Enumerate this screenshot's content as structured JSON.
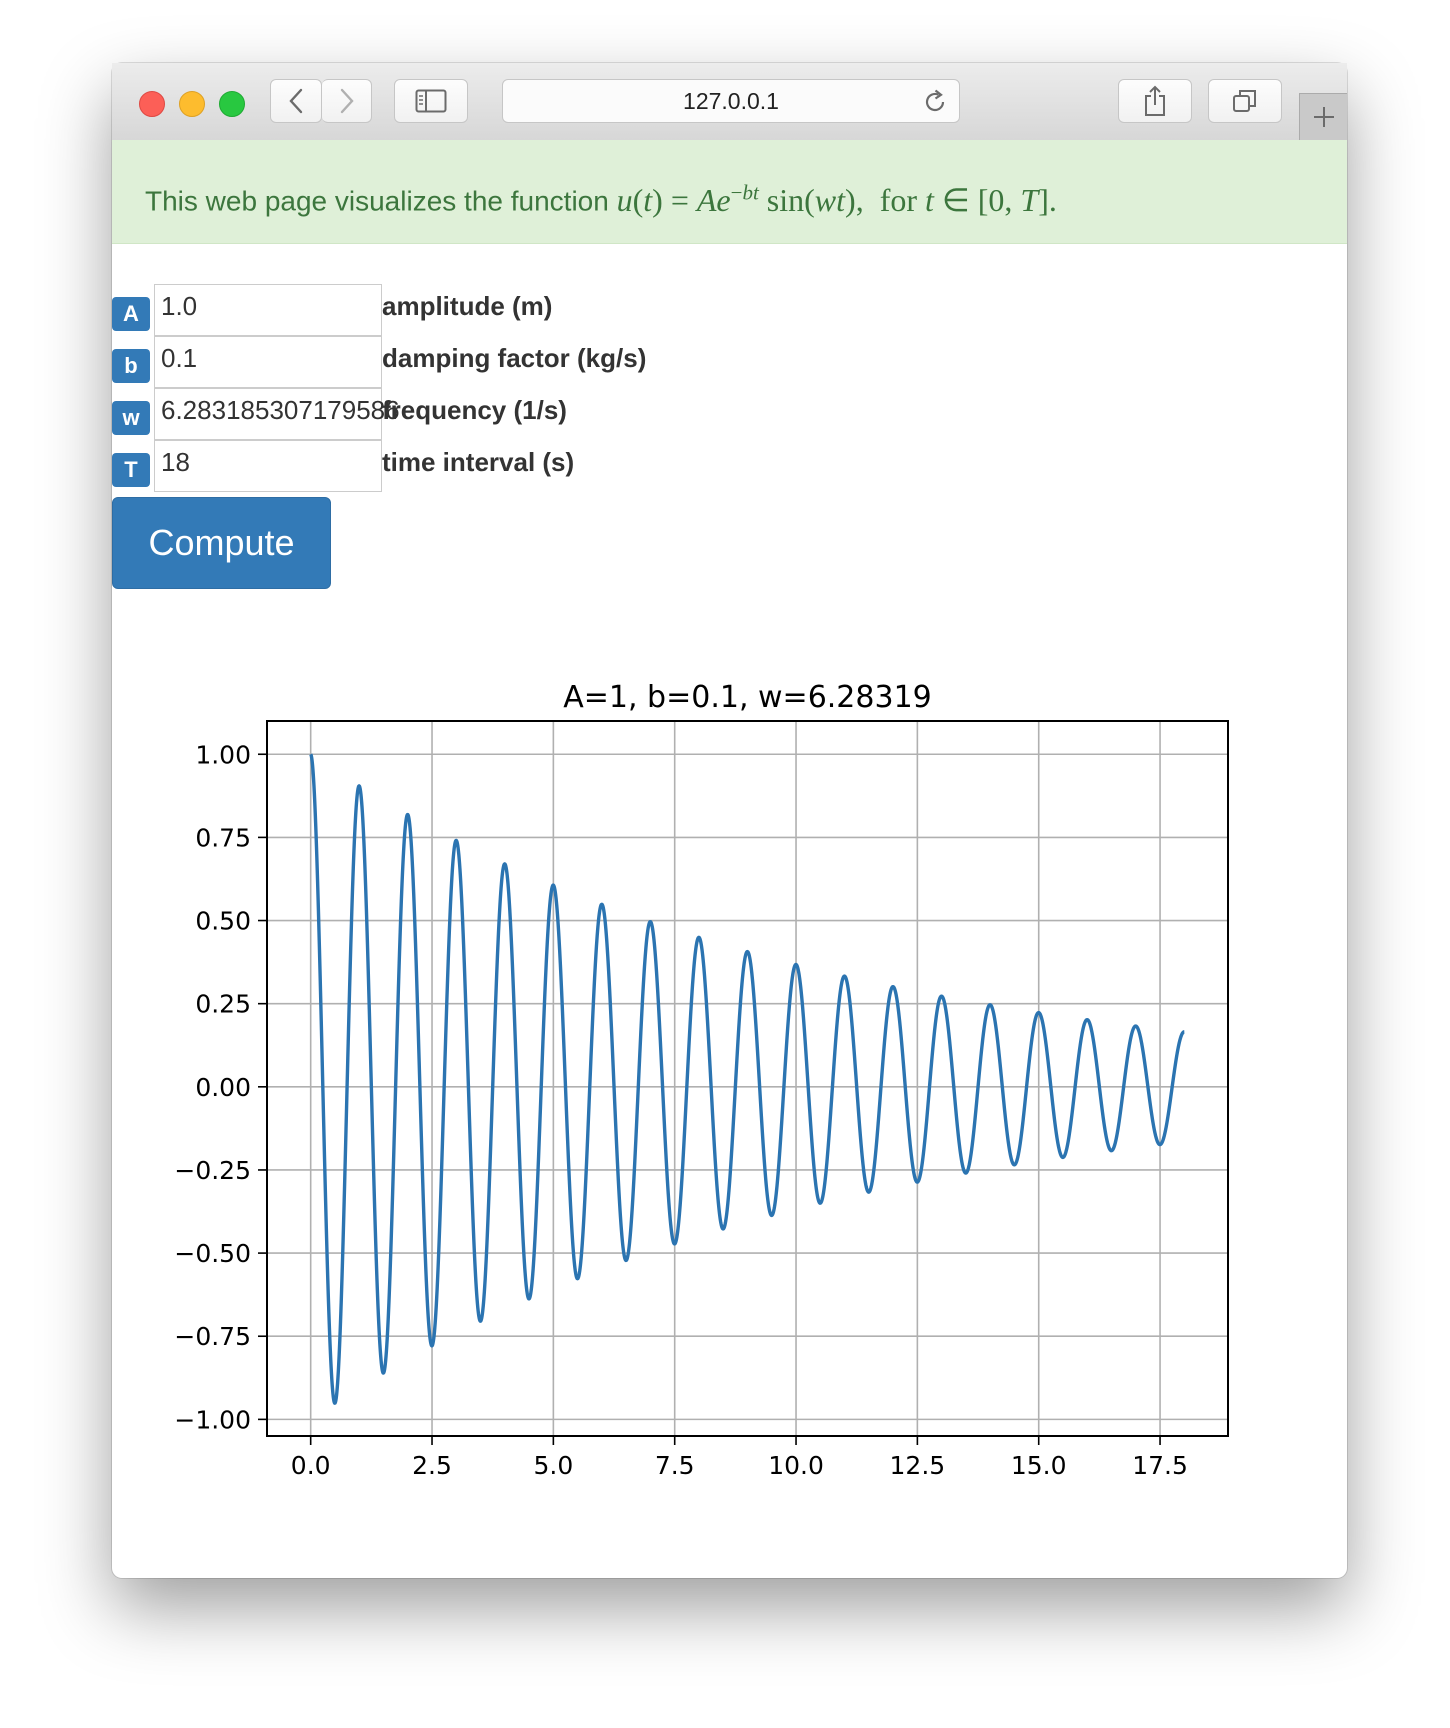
{
  "browser": {
    "address": "127.0.0.1"
  },
  "banner": {
    "prefix": "This web page visualizes the function ",
    "formula": "u(t) = Ae^(−bt) sin(wt),  for t ∈ [0, T]."
  },
  "form": {
    "fields": [
      {
        "tag": "A",
        "value": "1.0",
        "label": "amplitude (m)"
      },
      {
        "tag": "b",
        "value": "0.1",
        "label": "damping factor (kg/s)"
      },
      {
        "tag": "w",
        "value": "6.283185307179586",
        "label": "frequency (1/s)"
      },
      {
        "tag": "T",
        "value": "18",
        "label": "time interval (s)"
      }
    ],
    "submit_label": "Compute"
  },
  "chart_data": {
    "type": "line",
    "title": "A=1, b=0.1, w=6.28319",
    "function": "u(t) = A*exp(-b*t)*sin(w*t)",
    "params": {
      "A": 1,
      "b": 0.1,
      "w": 6.28319,
      "T": 18
    },
    "xlim": [
      -0.9,
      18.9
    ],
    "ylim": [
      -1.05,
      1.1
    ],
    "xticks": [
      0.0,
      2.5,
      5.0,
      7.5,
      10.0,
      12.5,
      15.0,
      17.5
    ],
    "xtick_labels": [
      "0.0",
      "2.5",
      "5.0",
      "7.5",
      "10.0",
      "12.5",
      "15.0",
      "17.5"
    ],
    "yticks": [
      1.0,
      0.75,
      0.5,
      0.25,
      0.0,
      -0.25,
      -0.5,
      -0.75,
      -1.0
    ],
    "ytick_labels": [
      "1.00",
      "0.75",
      "0.50",
      "0.25",
      "0.00",
      "−0.25",
      "−0.50",
      "−0.75",
      "−1.00"
    ],
    "grid": true,
    "color": "#2b74b1",
    "xlabel": "",
    "ylabel": ""
  }
}
